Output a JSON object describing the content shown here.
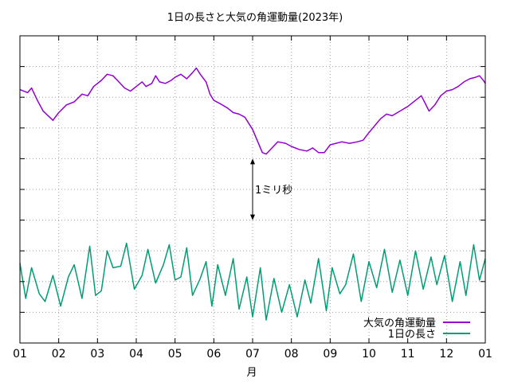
{
  "chart_data": {
    "type": "line",
    "title": "1日の長さと大気の角運動量(2023年)",
    "xlabel": "月",
    "ylabel": "",
    "x_ticks": [
      "01",
      "02",
      "03",
      "04",
      "05",
      "06",
      "07",
      "08",
      "09",
      "10",
      "11",
      "12",
      "01"
    ],
    "x_range": [
      0,
      12
    ],
    "grid": true,
    "legend_position": "bottom-right",
    "annotation": {
      "label": "1ミリ秒",
      "x": 6.0
    },
    "series": [
      {
        "name": "大気の角運動量",
        "color": "#9400d3",
        "points": [
          [
            0.0,
            8.25
          ],
          [
            0.2,
            8.15
          ],
          [
            0.3,
            8.3
          ],
          [
            0.45,
            7.9
          ],
          [
            0.6,
            7.55
          ],
          [
            0.85,
            7.25
          ],
          [
            1.0,
            7.5
          ],
          [
            1.2,
            7.75
          ],
          [
            1.4,
            7.85
          ],
          [
            1.6,
            8.1
          ],
          [
            1.75,
            8.05
          ],
          [
            1.9,
            8.35
          ],
          [
            2.1,
            8.55
          ],
          [
            2.25,
            8.75
          ],
          [
            2.4,
            8.7
          ],
          [
            2.55,
            8.5
          ],
          [
            2.7,
            8.3
          ],
          [
            2.85,
            8.2
          ],
          [
            3.0,
            8.35
          ],
          [
            3.15,
            8.5
          ],
          [
            3.25,
            8.35
          ],
          [
            3.4,
            8.45
          ],
          [
            3.5,
            8.7
          ],
          [
            3.6,
            8.5
          ],
          [
            3.75,
            8.45
          ],
          [
            3.9,
            8.55
          ],
          [
            4.0,
            8.65
          ],
          [
            4.15,
            8.75
          ],
          [
            4.3,
            8.6
          ],
          [
            4.45,
            8.8
          ],
          [
            4.55,
            8.95
          ],
          [
            4.65,
            8.75
          ],
          [
            4.8,
            8.5
          ],
          [
            4.9,
            8.1
          ],
          [
            5.0,
            7.9
          ],
          [
            5.15,
            7.8
          ],
          [
            5.35,
            7.65
          ],
          [
            5.5,
            7.5
          ],
          [
            5.65,
            7.45
          ],
          [
            5.8,
            7.35
          ],
          [
            6.0,
            6.95
          ],
          [
            6.15,
            6.5
          ],
          [
            6.25,
            6.2
          ],
          [
            6.35,
            6.15
          ],
          [
            6.5,
            6.35
          ],
          [
            6.65,
            6.55
          ],
          [
            6.85,
            6.5
          ],
          [
            7.0,
            6.4
          ],
          [
            7.2,
            6.3
          ],
          [
            7.4,
            6.25
          ],
          [
            7.55,
            6.35
          ],
          [
            7.7,
            6.2
          ],
          [
            7.85,
            6.2
          ],
          [
            8.0,
            6.45
          ],
          [
            8.15,
            6.5
          ],
          [
            8.3,
            6.55
          ],
          [
            8.5,
            6.5
          ],
          [
            8.7,
            6.55
          ],
          [
            8.85,
            6.6
          ],
          [
            9.0,
            6.85
          ],
          [
            9.1,
            7.0
          ],
          [
            9.2,
            7.15
          ],
          [
            9.3,
            7.3
          ],
          [
            9.45,
            7.45
          ],
          [
            9.6,
            7.4
          ],
          [
            9.8,
            7.55
          ],
          [
            10.0,
            7.7
          ],
          [
            10.2,
            7.9
          ],
          [
            10.35,
            8.05
          ],
          [
            10.45,
            7.8
          ],
          [
            10.55,
            7.55
          ],
          [
            10.7,
            7.75
          ],
          [
            10.85,
            8.05
          ],
          [
            11.0,
            8.2
          ],
          [
            11.15,
            8.25
          ],
          [
            11.3,
            8.35
          ],
          [
            11.45,
            8.5
          ],
          [
            11.6,
            8.6
          ],
          [
            11.75,
            8.65
          ],
          [
            11.85,
            8.7
          ],
          [
            11.95,
            8.55
          ],
          [
            12.0,
            8.45
          ]
        ]
      },
      {
        "name": "1日の長さ",
        "color": "#009e73",
        "points": [
          [
            0.0,
            2.6
          ],
          [
            0.15,
            1.45
          ],
          [
            0.3,
            2.45
          ],
          [
            0.5,
            1.6
          ],
          [
            0.65,
            1.35
          ],
          [
            0.85,
            2.2
          ],
          [
            1.05,
            1.2
          ],
          [
            1.25,
            2.15
          ],
          [
            1.4,
            2.55
          ],
          [
            1.6,
            1.45
          ],
          [
            1.8,
            3.15
          ],
          [
            1.95,
            1.55
          ],
          [
            2.1,
            1.7
          ],
          [
            2.25,
            3.0
          ],
          [
            2.4,
            2.45
          ],
          [
            2.6,
            2.5
          ],
          [
            2.75,
            3.25
          ],
          [
            2.95,
            1.75
          ],
          [
            3.15,
            2.2
          ],
          [
            3.3,
            3.05
          ],
          [
            3.5,
            1.95
          ],
          [
            3.7,
            2.55
          ],
          [
            3.85,
            3.2
          ],
          [
            4.0,
            2.05
          ],
          [
            4.15,
            2.15
          ],
          [
            4.3,
            3.1
          ],
          [
            4.45,
            1.55
          ],
          [
            4.65,
            2.1
          ],
          [
            4.8,
            2.65
          ],
          [
            4.95,
            1.2
          ],
          [
            5.1,
            2.55
          ],
          [
            5.3,
            1.55
          ],
          [
            5.5,
            2.75
          ],
          [
            5.65,
            1.1
          ],
          [
            5.85,
            2.15
          ],
          [
            6.0,
            0.85
          ],
          [
            6.2,
            2.45
          ],
          [
            6.35,
            0.75
          ],
          [
            6.55,
            2.1
          ],
          [
            6.75,
            1.0
          ],
          [
            6.95,
            1.9
          ],
          [
            7.15,
            0.85
          ],
          [
            7.35,
            2.05
          ],
          [
            7.5,
            1.3
          ],
          [
            7.7,
            2.75
          ],
          [
            7.9,
            1.05
          ],
          [
            8.05,
            2.45
          ],
          [
            8.25,
            1.6
          ],
          [
            8.4,
            1.9
          ],
          [
            8.6,
            2.9
          ],
          [
            8.8,
            1.35
          ],
          [
            9.0,
            2.65
          ],
          [
            9.2,
            1.8
          ],
          [
            9.4,
            3.05
          ],
          [
            9.6,
            1.65
          ],
          [
            9.8,
            2.7
          ],
          [
            10.0,
            1.55
          ],
          [
            10.2,
            3.0
          ],
          [
            10.4,
            1.75
          ],
          [
            10.6,
            2.8
          ],
          [
            10.75,
            1.9
          ],
          [
            10.95,
            2.85
          ],
          [
            11.15,
            1.35
          ],
          [
            11.35,
            2.65
          ],
          [
            11.5,
            1.55
          ],
          [
            11.7,
            3.2
          ],
          [
            11.85,
            2.05
          ],
          [
            12.0,
            2.75
          ]
        ]
      }
    ]
  }
}
